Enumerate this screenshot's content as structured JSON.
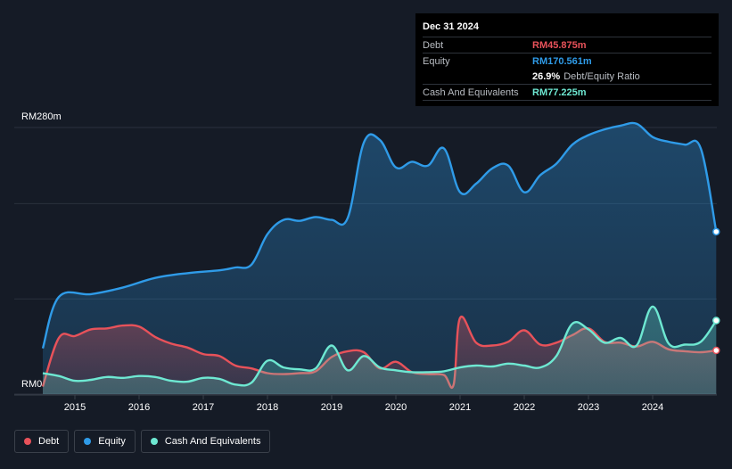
{
  "tooltip": {
    "date": "Dec 31 2024",
    "rows": [
      {
        "label": "Debt",
        "value": "RM45.875m",
        "color": "#e8525a"
      },
      {
        "label": "Equity",
        "value": "RM170.561m",
        "color": "#2f9be8"
      },
      {
        "label": "",
        "value": "26.9%",
        "suffix": "Debt/Equity Ratio",
        "color": "#ffffff"
      },
      {
        "label": "Cash And Equivalents",
        "value": "RM77.225m",
        "color": "#6ee8d2"
      }
    ]
  },
  "legend": [
    {
      "label": "Debt",
      "color": "#e8525a"
    },
    {
      "label": "Equity",
      "color": "#2f9be8"
    },
    {
      "label": "Cash And Equivalents",
      "color": "#6ee8d2"
    }
  ],
  "chart_data": {
    "type": "area",
    "y_top_label": "RM280m",
    "y_bottom_label": "RM0",
    "ylim": [
      0,
      280
    ],
    "xlim": [
      2014.5,
      2025.0
    ],
    "x_ticks": [
      "2015",
      "2016",
      "2017",
      "2018",
      "2019",
      "2020",
      "2021",
      "2022",
      "2023",
      "2024"
    ],
    "grid": true,
    "series": [
      {
        "name": "Equity",
        "color": "#2f9be8",
        "points": [
          [
            2014.5,
            48
          ],
          [
            2014.75,
            102
          ],
          [
            2015.25,
            105
          ],
          [
            2015.75,
            112
          ],
          [
            2016.25,
            122
          ],
          [
            2016.75,
            127
          ],
          [
            2017.25,
            130
          ],
          [
            2017.5,
            133
          ],
          [
            2017.75,
            136
          ],
          [
            2018.0,
            168
          ],
          [
            2018.25,
            183
          ],
          [
            2018.5,
            182
          ],
          [
            2018.75,
            186
          ],
          [
            2019.0,
            183
          ],
          [
            2019.25,
            185
          ],
          [
            2019.5,
            264
          ],
          [
            2019.75,
            267
          ],
          [
            2020.0,
            238
          ],
          [
            2020.25,
            244
          ],
          [
            2020.5,
            240
          ],
          [
            2020.75,
            258
          ],
          [
            2021.0,
            212
          ],
          [
            2021.25,
            221
          ],
          [
            2021.5,
            237
          ],
          [
            2021.75,
            240
          ],
          [
            2022.0,
            212
          ],
          [
            2022.25,
            230
          ],
          [
            2022.5,
            242
          ],
          [
            2022.75,
            262
          ],
          [
            2023.0,
            272
          ],
          [
            2023.25,
            278
          ],
          [
            2023.5,
            282
          ],
          [
            2023.75,
            284
          ],
          [
            2024.0,
            270
          ],
          [
            2024.25,
            265
          ],
          [
            2024.5,
            262
          ],
          [
            2024.75,
            258
          ],
          [
            2024.99,
            170.561
          ]
        ]
      },
      {
        "name": "Debt",
        "color": "#e8525a",
        "points": [
          [
            2014.5,
            8
          ],
          [
            2014.75,
            59
          ],
          [
            2015.0,
            61
          ],
          [
            2015.25,
            68
          ],
          [
            2015.5,
            69
          ],
          [
            2015.75,
            72
          ],
          [
            2016.0,
            71
          ],
          [
            2016.25,
            60
          ],
          [
            2016.5,
            53
          ],
          [
            2016.75,
            49
          ],
          [
            2017.0,
            42
          ],
          [
            2017.25,
            40
          ],
          [
            2017.5,
            30
          ],
          [
            2017.75,
            27
          ],
          [
            2018.0,
            22
          ],
          [
            2018.25,
            21
          ],
          [
            2018.5,
            22
          ],
          [
            2018.75,
            24
          ],
          [
            2019.0,
            39
          ],
          [
            2019.25,
            45
          ],
          [
            2019.5,
            44
          ],
          [
            2019.75,
            27
          ],
          [
            2020.0,
            34
          ],
          [
            2020.25,
            23
          ],
          [
            2020.5,
            21
          ],
          [
            2020.75,
            20
          ],
          [
            2020.9,
            10
          ],
          [
            2021.0,
            80
          ],
          [
            2021.25,
            54
          ],
          [
            2021.5,
            51
          ],
          [
            2021.75,
            55
          ],
          [
            2022.0,
            67
          ],
          [
            2022.25,
            52
          ],
          [
            2022.5,
            54
          ],
          [
            2022.75,
            62
          ],
          [
            2023.0,
            69
          ],
          [
            2023.25,
            55
          ],
          [
            2023.5,
            54
          ],
          [
            2023.75,
            50
          ],
          [
            2024.0,
            55
          ],
          [
            2024.25,
            47
          ],
          [
            2024.5,
            45
          ],
          [
            2024.75,
            44
          ],
          [
            2024.99,
            45.875
          ]
        ]
      },
      {
        "name": "Cash And Equivalents",
        "color": "#6ee8d2",
        "points": [
          [
            2014.5,
            22
          ],
          [
            2014.75,
            19
          ],
          [
            2015.0,
            14
          ],
          [
            2015.25,
            15
          ],
          [
            2015.5,
            18
          ],
          [
            2015.75,
            17
          ],
          [
            2016.0,
            19
          ],
          [
            2016.25,
            18
          ],
          [
            2016.5,
            14
          ],
          [
            2016.75,
            13
          ],
          [
            2017.0,
            17
          ],
          [
            2017.25,
            16
          ],
          [
            2017.5,
            10
          ],
          [
            2017.75,
            12
          ],
          [
            2018.0,
            35
          ],
          [
            2018.25,
            28
          ],
          [
            2018.5,
            26
          ],
          [
            2018.75,
            27
          ],
          [
            2019.0,
            51
          ],
          [
            2019.25,
            25
          ],
          [
            2019.5,
            40
          ],
          [
            2019.75,
            28
          ],
          [
            2020.0,
            25
          ],
          [
            2020.25,
            23
          ],
          [
            2020.5,
            23
          ],
          [
            2020.75,
            24
          ],
          [
            2021.0,
            28
          ],
          [
            2021.25,
            30
          ],
          [
            2021.5,
            29
          ],
          [
            2021.75,
            32
          ],
          [
            2022.0,
            30
          ],
          [
            2022.25,
            28
          ],
          [
            2022.5,
            40
          ],
          [
            2022.75,
            74
          ],
          [
            2023.0,
            68
          ],
          [
            2023.25,
            54
          ],
          [
            2023.5,
            59
          ],
          [
            2023.75,
            51
          ],
          [
            2024.0,
            92
          ],
          [
            2024.25,
            53
          ],
          [
            2024.5,
            52
          ],
          [
            2024.75,
            55
          ],
          [
            2024.99,
            77.225
          ]
        ]
      }
    ]
  }
}
